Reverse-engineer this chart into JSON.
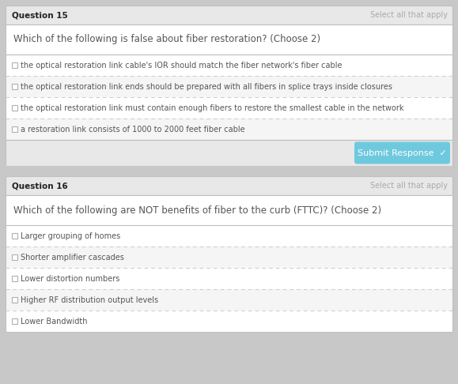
{
  "q15_number": "Question 15",
  "q15_instruction": "Select all that apply",
  "q15_question": "Which of the following is false about fiber restoration? (Choose 2)",
  "q15_options": [
    "the optical restoration link cable's IOR should match the fiber network's fiber cable",
    "the optical restoration link ends should be prepared with all fibers in splice trays inside closures",
    "the optical restoration link must contain enough fibers to restore the smallest cable in the network",
    "a restoration link consists of 1000 to 2000 feet fiber cable"
  ],
  "q15_button_text": "Submit Response  ✓",
  "q16_number": "Question 16",
  "q16_instruction": "Select all that apply",
  "q16_question": "Which of the following are NOT benefits of fiber to the curb (FTTC)? (Choose 2)",
  "q16_options": [
    "Larger grouping of homes",
    "Shorter amplifier cascades",
    "Lower distortion numbers",
    "Higher RF distribution output levels",
    "Lower Bandwidth"
  ],
  "bg_outer": "#c8c8c8",
  "bg_header": "#e8e8e8",
  "bg_white": "#ffffff",
  "bg_option": "#f5f5f5",
  "border_color": "#c0c0c0",
  "header_text_color": "#222222",
  "question_text_color": "#555555",
  "option_text_color": "#555555",
  "instruction_text_color": "#aaaaaa",
  "button_bg": "#6ec9de",
  "button_text_color": "#ffffff",
  "dashed_color": "#cccccc",
  "fig_w": 5.79,
  "fig_h": 4.86,
  "dpi": 100
}
